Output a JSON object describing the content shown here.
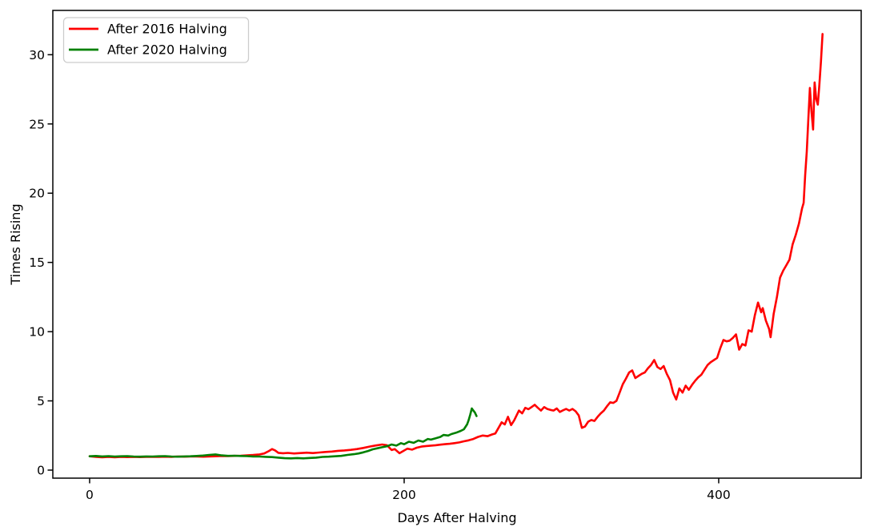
{
  "chart_data": {
    "type": "line",
    "title": "",
    "xlabel": "Days After Halving",
    "ylabel": "Times Rising",
    "xlim": [
      -23.4,
      490.6
    ],
    "ylim": [
      -0.58,
      33.2
    ],
    "xticks": [
      0,
      200,
      400
    ],
    "yticks": [
      0,
      5,
      10,
      15,
      20,
      25,
      30
    ],
    "grid": false,
    "legend": {
      "position": "upper left",
      "entries": [
        "After 2016 Halving",
        "After 2020 Halving"
      ]
    },
    "series": [
      {
        "name": "After 2016 Halving",
        "color": "#ff0000",
        "points": [
          [
            0,
            1.0
          ],
          [
            4,
            0.96
          ],
          [
            8,
            0.93
          ],
          [
            12,
            0.95
          ],
          [
            16,
            0.93
          ],
          [
            20,
            0.95
          ],
          [
            24,
            0.94
          ],
          [
            28,
            0.96
          ],
          [
            32,
            0.94
          ],
          [
            36,
            0.95
          ],
          [
            40,
            0.96
          ],
          [
            44,
            0.95
          ],
          [
            48,
            0.97
          ],
          [
            52,
            0.96
          ],
          [
            56,
            0.98
          ],
          [
            60,
            0.97
          ],
          [
            64,
            0.99
          ],
          [
            68,
            0.98
          ],
          [
            72,
            0.97
          ],
          [
            76,
            0.99
          ],
          [
            80,
            1.0
          ],
          [
            84,
            1.02
          ],
          [
            88,
            1.01
          ],
          [
            92,
            1.03
          ],
          [
            96,
            1.04
          ],
          [
            100,
            1.06
          ],
          [
            104,
            1.09
          ],
          [
            108,
            1.13
          ],
          [
            111,
            1.2
          ],
          [
            114,
            1.38
          ],
          [
            116,
            1.52
          ],
          [
            118,
            1.42
          ],
          [
            120,
            1.25
          ],
          [
            123,
            1.22
          ],
          [
            126,
            1.24
          ],
          [
            130,
            1.2
          ],
          [
            134,
            1.23
          ],
          [
            138,
            1.26
          ],
          [
            142,
            1.23
          ],
          [
            146,
            1.27
          ],
          [
            150,
            1.31
          ],
          [
            154,
            1.34
          ],
          [
            158,
            1.39
          ],
          [
            162,
            1.42
          ],
          [
            166,
            1.46
          ],
          [
            170,
            1.52
          ],
          [
            174,
            1.6
          ],
          [
            178,
            1.7
          ],
          [
            182,
            1.78
          ],
          [
            186,
            1.85
          ],
          [
            189,
            1.8
          ],
          [
            192,
            1.45
          ],
          [
            194,
            1.52
          ],
          [
            197,
            1.22
          ],
          [
            199,
            1.35
          ],
          [
            202,
            1.55
          ],
          [
            205,
            1.48
          ],
          [
            208,
            1.62
          ],
          [
            211,
            1.7
          ],
          [
            214,
            1.74
          ],
          [
            217,
            1.77
          ],
          [
            220,
            1.8
          ],
          [
            223,
            1.84
          ],
          [
            226,
            1.87
          ],
          [
            229,
            1.9
          ],
          [
            232,
            1.95
          ],
          [
            235,
            2.0
          ],
          [
            238,
            2.08
          ],
          [
            241,
            2.15
          ],
          [
            244,
            2.25
          ],
          [
            247,
            2.4
          ],
          [
            250,
            2.5
          ],
          [
            253,
            2.45
          ],
          [
            256,
            2.58
          ],
          [
            258,
            2.65
          ],
          [
            260,
            3.05
          ],
          [
            262,
            3.45
          ],
          [
            264,
            3.3
          ],
          [
            266,
            3.85
          ],
          [
            268,
            3.25
          ],
          [
            270,
            3.6
          ],
          [
            273,
            4.3
          ],
          [
            275,
            4.1
          ],
          [
            277,
            4.5
          ],
          [
            279,
            4.4
          ],
          [
            281,
            4.55
          ],
          [
            283,
            4.72
          ],
          [
            285,
            4.5
          ],
          [
            287,
            4.3
          ],
          [
            289,
            4.55
          ],
          [
            291,
            4.42
          ],
          [
            293,
            4.35
          ],
          [
            295,
            4.3
          ],
          [
            297,
            4.45
          ],
          [
            299,
            4.2
          ],
          [
            301,
            4.32
          ],
          [
            303,
            4.42
          ],
          [
            305,
            4.3
          ],
          [
            307,
            4.42
          ],
          [
            309,
            4.25
          ],
          [
            311,
            3.95
          ],
          [
            313,
            3.05
          ],
          [
            315,
            3.15
          ],
          [
            317,
            3.5
          ],
          [
            319,
            3.62
          ],
          [
            321,
            3.55
          ],
          [
            323,
            3.85
          ],
          [
            325,
            4.1
          ],
          [
            327,
            4.3
          ],
          [
            329,
            4.62
          ],
          [
            331,
            4.9
          ],
          [
            333,
            4.85
          ],
          [
            335,
            5.0
          ],
          [
            337,
            5.6
          ],
          [
            339,
            6.2
          ],
          [
            341,
            6.6
          ],
          [
            343,
            7.05
          ],
          [
            345,
            7.2
          ],
          [
            347,
            6.65
          ],
          [
            349,
            6.8
          ],
          [
            351,
            6.95
          ],
          [
            353,
            7.05
          ],
          [
            355,
            7.35
          ],
          [
            357,
            7.6
          ],
          [
            359,
            7.95
          ],
          [
            361,
            7.45
          ],
          [
            363,
            7.3
          ],
          [
            365,
            7.52
          ],
          [
            367,
            6.95
          ],
          [
            369,
            6.5
          ],
          [
            371,
            5.6
          ],
          [
            373,
            5.1
          ],
          [
            375,
            5.9
          ],
          [
            377,
            5.6
          ],
          [
            379,
            6.1
          ],
          [
            381,
            5.8
          ],
          [
            383,
            6.15
          ],
          [
            385,
            6.45
          ],
          [
            387,
            6.7
          ],
          [
            389,
            6.9
          ],
          [
            391,
            7.25
          ],
          [
            393,
            7.6
          ],
          [
            395,
            7.8
          ],
          [
            397,
            7.95
          ],
          [
            399,
            8.1
          ],
          [
            401,
            8.8
          ],
          [
            403,
            9.4
          ],
          [
            405,
            9.3
          ],
          [
            407,
            9.35
          ],
          [
            409,
            9.55
          ],
          [
            411,
            9.8
          ],
          [
            413,
            8.7
          ],
          [
            415,
            9.1
          ],
          [
            417,
            9.0
          ],
          [
            419,
            10.1
          ],
          [
            421,
            10.0
          ],
          [
            423,
            11.2
          ],
          [
            425,
            12.1
          ],
          [
            427,
            11.4
          ],
          [
            428,
            11.7
          ],
          [
            430,
            10.8
          ],
          [
            432,
            10.2
          ],
          [
            433,
            9.6
          ],
          [
            435,
            11.3
          ],
          [
            437,
            12.5
          ],
          [
            439,
            13.9
          ],
          [
            441,
            14.4
          ],
          [
            443,
            14.8
          ],
          [
            445,
            15.2
          ],
          [
            447,
            16.3
          ],
          [
            449,
            17.0
          ],
          [
            451,
            17.8
          ],
          [
            453,
            18.9
          ],
          [
            454,
            19.3
          ],
          [
            455,
            21.3
          ],
          [
            456,
            23.0
          ],
          [
            457,
            25.4
          ],
          [
            458,
            27.6
          ],
          [
            459,
            25.9
          ],
          [
            460,
            24.6
          ],
          [
            461,
            28.0
          ],
          [
            462,
            26.8
          ],
          [
            463,
            26.4
          ],
          [
            464,
            27.8
          ],
          [
            465,
            29.5
          ],
          [
            466,
            31.5
          ]
        ]
      },
      {
        "name": "After 2020 Halving",
        "color": "#008000",
        "points": [
          [
            0,
            1.0
          ],
          [
            4,
            1.02
          ],
          [
            8,
            0.99
          ],
          [
            12,
            1.01
          ],
          [
            16,
            0.98
          ],
          [
            20,
            1.0
          ],
          [
            24,
            1.01
          ],
          [
            28,
            0.98
          ],
          [
            32,
            0.97
          ],
          [
            36,
            0.99
          ],
          [
            40,
            0.98
          ],
          [
            44,
            1.0
          ],
          [
            48,
            1.01
          ],
          [
            52,
            0.98
          ],
          [
            56,
            0.97
          ],
          [
            60,
            0.99
          ],
          [
            64,
            1.0
          ],
          [
            68,
            1.02
          ],
          [
            72,
            1.05
          ],
          [
            76,
            1.1
          ],
          [
            80,
            1.13
          ],
          [
            84,
            1.06
          ],
          [
            88,
            1.03
          ],
          [
            92,
            1.04
          ],
          [
            96,
            1.02
          ],
          [
            100,
            1.01
          ],
          [
            104,
            0.99
          ],
          [
            108,
            0.98
          ],
          [
            112,
            0.96
          ],
          [
            116,
            0.94
          ],
          [
            120,
            0.9
          ],
          [
            124,
            0.86
          ],
          [
            128,
            0.85
          ],
          [
            132,
            0.87
          ],
          [
            136,
            0.85
          ],
          [
            140,
            0.88
          ],
          [
            144,
            0.9
          ],
          [
            148,
            0.95
          ],
          [
            152,
            0.97
          ],
          [
            156,
            1.0
          ],
          [
            160,
            1.03
          ],
          [
            164,
            1.1
          ],
          [
            168,
            1.15
          ],
          [
            171,
            1.2
          ],
          [
            174,
            1.28
          ],
          [
            177,
            1.38
          ],
          [
            180,
            1.5
          ],
          [
            183,
            1.58
          ],
          [
            186,
            1.65
          ],
          [
            189,
            1.72
          ],
          [
            192,
            1.85
          ],
          [
            195,
            1.77
          ],
          [
            198,
            1.95
          ],
          [
            200,
            1.87
          ],
          [
            203,
            2.05
          ],
          [
            206,
            1.97
          ],
          [
            209,
            2.14
          ],
          [
            212,
            2.05
          ],
          [
            215,
            2.25
          ],
          [
            217,
            2.2
          ],
          [
            220,
            2.3
          ],
          [
            223,
            2.4
          ],
          [
            225,
            2.54
          ],
          [
            228,
            2.5
          ],
          [
            230,
            2.6
          ],
          [
            233,
            2.7
          ],
          [
            236,
            2.83
          ],
          [
            238,
            2.95
          ],
          [
            240,
            3.3
          ],
          [
            241,
            3.6
          ],
          [
            242,
            4.0
          ],
          [
            243,
            4.45
          ],
          [
            244,
            4.3
          ],
          [
            245,
            4.15
          ],
          [
            246,
            3.9
          ]
        ]
      }
    ]
  }
}
